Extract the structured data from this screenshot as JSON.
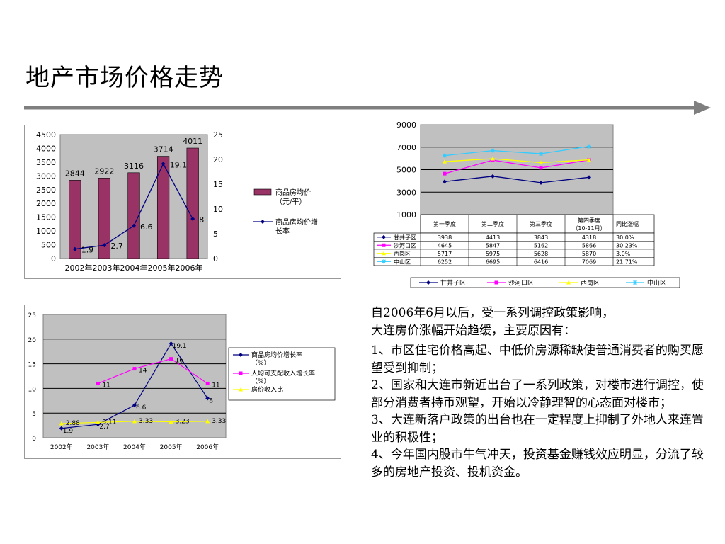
{
  "slide": {
    "title": "地产市场价格走势"
  },
  "colors": {
    "bar": "#993366",
    "line_navy": "#000080",
    "line_magenta": "#ff00ff",
    "line_yellow": "#ffff00",
    "line_cyan": "#33ccff",
    "plot_gray": "#c0c0c0"
  },
  "chart_data": [
    {
      "type": "bar",
      "categories": [
        "2002年",
        "2003年",
        "2004年",
        "2005年",
        "2006年"
      ],
      "series": [
        {
          "name": "商品房均价（元/平）",
          "type": "bar",
          "axis": "left",
          "values": [
            2844,
            2922,
            3116,
            3714,
            4011
          ],
          "data_labels": [
            "2844",
            "2922",
            "3116",
            "3714",
            "4011"
          ]
        },
        {
          "name": "商品房均价增长率",
          "type": "line",
          "axis": "right",
          "values": [
            1.9,
            2.7,
            6.6,
            19.1,
            8
          ],
          "data_labels": [
            "1.9",
            "2.7",
            "6.6",
            "19.1",
            "8"
          ]
        }
      ],
      "legend": [
        "商品房均价（元/平）",
        "商品房均价增长率"
      ],
      "legend_lines": [
        [
          "商品房均价",
          "（元/平）"
        ],
        [
          "商品房均价增",
          "长率"
        ]
      ],
      "y_left": {
        "range": [
          0,
          4500
        ],
        "ticks": [
          "0",
          "500",
          "1000",
          "1500",
          "2000",
          "2500",
          "3000",
          "3500",
          "4000",
          "4500"
        ]
      },
      "y_right": {
        "range": [
          0,
          25
        ],
        "ticks": [
          "0",
          "5",
          "10",
          "15",
          "20",
          "25"
        ]
      },
      "legend_position": "right",
      "grid": false
    },
    {
      "type": "line",
      "categories": [
        "第一季度",
        "第二季度",
        "第三季度",
        "第四季度（10-11月）"
      ],
      "category_lines": [
        [
          "第一季度"
        ],
        [
          "第二季度"
        ],
        [
          "第三季度"
        ],
        [
          "第四季度",
          "（10-11月）"
        ]
      ],
      "extra_column": "同比涨幅",
      "series": [
        {
          "name": "甘井子区",
          "color": "#000080",
          "values": [
            3938,
            4413,
            3843,
            4318
          ],
          "labels": [
            "3938",
            "4413",
            "3843",
            "4318"
          ],
          "yoy": "30.0%"
        },
        {
          "name": "沙河口区",
          "color": "#ff00ff",
          "values": [
            4645,
            5847,
            5162,
            5866
          ],
          "labels": [
            "4645",
            "5847",
            "5162",
            "5866"
          ],
          "yoy": "30.23%"
        },
        {
          "name": "西岗区",
          "color": "#ffff00",
          "values": [
            5717,
            5975,
            5628,
            5870
          ],
          "labels": [
            "5717",
            "5975",
            "5628",
            "5870"
          ],
          "yoy": "3.0%"
        },
        {
          "name": "中山区",
          "color": "#33ccff",
          "values": [
            6252,
            6695,
            6416,
            7069
          ],
          "labels": [
            "6252",
            "6695",
            "6416",
            "7069"
          ],
          "yoy": "21.71%"
        }
      ],
      "y": {
        "range": [
          1000,
          9000
        ],
        "ticks": [
          "1000",
          "3000",
          "5000",
          "7000",
          "9000"
        ]
      },
      "legend": [
        "甘井子区",
        "沙河口区",
        "西岗区",
        "中山区"
      ],
      "legend_position": "bottom",
      "grid": true
    },
    {
      "type": "line",
      "categories": [
        "2002年",
        "2003年",
        "2004年",
        "2005年",
        "2006年"
      ],
      "series": [
        {
          "name": "商品房均价增长率（%）",
          "color": "#000080",
          "values": [
            1.9,
            2.7,
            6.6,
            19.1,
            8
          ],
          "labels": [
            "1.9",
            "2.7",
            "6.6",
            "19.1",
            "8"
          ]
        },
        {
          "name": "人均可支配收入增长率（%）",
          "color": "#ff00ff",
          "values": [
            null,
            11,
            14,
            16,
            11
          ],
          "labels": [
            "",
            "11",
            "14",
            "16",
            "11"
          ]
        },
        {
          "name": "房价收入比",
          "color": "#ffff00",
          "values": [
            2.88,
            3.11,
            3.33,
            3.23,
            3.33
          ],
          "labels": [
            "2.88",
            "3.11",
            "3.33",
            "3.23",
            "3.33"
          ]
        }
      ],
      "legend_lines": [
        [
          "商品房均价增长率",
          "（%）"
        ],
        [
          "人均可支配收入增长率",
          "（%）"
        ],
        [
          "房价收入比"
        ]
      ],
      "y": {
        "range": [
          0,
          25
        ],
        "ticks": [
          "0",
          "5",
          "10",
          "15",
          "20",
          "25"
        ]
      },
      "legend_position": "right",
      "grid": true
    }
  ],
  "text": {
    "lead1": "自2006年6月以后，受一系列调控政策影响，",
    "lead2": "大连房价涨幅开始趋缓，主要原因有：",
    "p1": " 1、市区住宅价格高起、中低价房源稀缺使普通消费者的购买愿望受到抑制；",
    "p2": "2、国家和大连市新近出台了一系列政策，对楼市进行调控，使部分消费者持币观望，开始以冷静理智的心态面对楼市；",
    "p3": "3、大连新落户政策的出台也在一定程度上抑制了外地人来连置业的积极性；",
    "p4": "4、今年国内股市牛气冲天，投资基金赚钱效应明显，分流了较多的房地产投资、投机资金。"
  }
}
